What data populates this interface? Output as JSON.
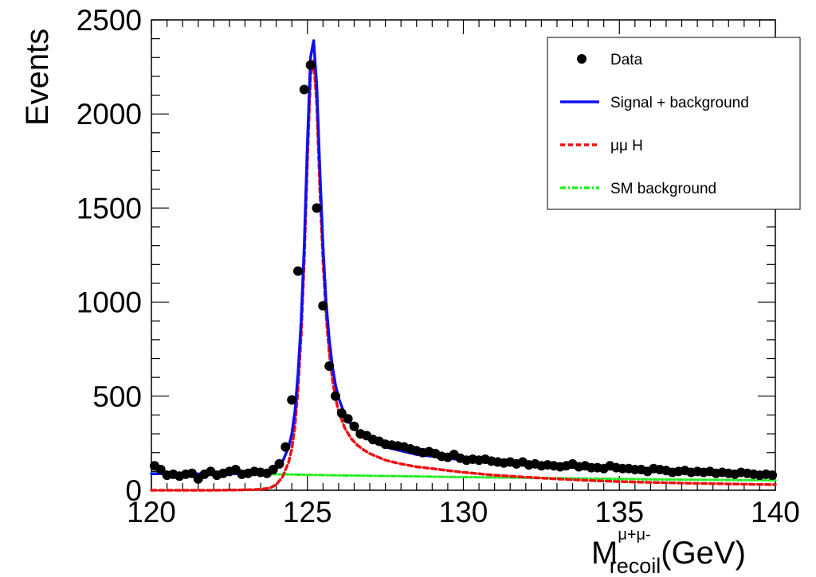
{
  "chart_data": {
    "type": "scatter",
    "ylabel": "Events",
    "xlabel": {
      "main": "M",
      "sup": "μ+μ-",
      "sub": "recoil",
      "unit": "(GeV)"
    },
    "xlim": [
      120,
      140
    ],
    "ylim": [
      0,
      2500
    ],
    "x_ticks": [
      "120",
      "125",
      "130",
      "135",
      "140"
    ],
    "y_ticks": [
      "0",
      "500",
      "1000",
      "1500",
      "2000",
      "2500"
    ],
    "grid": false,
    "legend_position": "top-right",
    "series": [
      {
        "name": "Data",
        "kind": "points",
        "color": "#000000",
        "x": [
          120.1,
          120.3,
          120.5,
          120.7,
          120.9,
          121.1,
          121.3,
          121.5,
          121.7,
          121.9,
          122.1,
          122.3,
          122.5,
          122.7,
          122.9,
          123.1,
          123.3,
          123.5,
          123.7,
          123.9,
          124.1,
          124.3,
          124.5,
          124.7,
          124.9,
          125.1,
          125.3,
          125.5,
          125.7,
          125.9,
          126.1,
          126.3,
          126.5,
          126.7,
          126.9,
          127.1,
          127.3,
          127.5,
          127.7,
          127.9,
          128.1,
          128.3,
          128.5,
          128.7,
          128.9,
          129.1,
          129.3,
          129.5,
          129.7,
          129.9,
          130.1,
          130.3,
          130.5,
          130.7,
          130.9,
          131.1,
          131.3,
          131.5,
          131.7,
          131.9,
          132.1,
          132.3,
          132.5,
          132.7,
          132.9,
          133.1,
          133.3,
          133.5,
          133.7,
          133.9,
          134.1,
          134.3,
          134.5,
          134.7,
          134.9,
          135.1,
          135.3,
          135.5,
          135.7,
          135.9,
          136.1,
          136.3,
          136.5,
          136.7,
          136.9,
          137.1,
          137.3,
          137.5,
          137.7,
          137.9,
          138.1,
          138.3,
          138.5,
          138.7,
          138.9,
          139.1,
          139.3,
          139.5,
          139.7,
          139.9
        ],
        "y": [
          130,
          110,
          80,
          85,
          75,
          85,
          90,
          60,
          85,
          100,
          80,
          90,
          100,
          110,
          85,
          90,
          100,
          95,
          90,
          110,
          140,
          230,
          480,
          1165,
          2130,
          2260,
          1500,
          980,
          660,
          500,
          410,
          380,
          340,
          300,
          290,
          270,
          260,
          245,
          240,
          235,
          230,
          220,
          210,
          200,
          205,
          195,
          180,
          175,
          190,
          170,
          160,
          165,
          160,
          165,
          155,
          150,
          145,
          150,
          140,
          150,
          135,
          140,
          130,
          135,
          130,
          125,
          130,
          140,
          125,
          130,
          120,
          120,
          115,
          130,
          120,
          115,
          115,
          110,
          110,
          100,
          115,
          110,
          105,
          95,
          100,
          105,
          95,
          100,
          95,
          100,
          90,
          95,
          90,
          85,
          95,
          90,
          85,
          80,
          85,
          80
        ]
      },
      {
        "name": "Signal + background",
        "kind": "line",
        "color": "#1010ee",
        "x": [
          120.0,
          120.5,
          121.0,
          121.5,
          122.0,
          122.5,
          123.0,
          123.5,
          123.8,
          124.0,
          124.2,
          124.4,
          124.5,
          124.6,
          124.7,
          124.8,
          124.9,
          125.0,
          125.1,
          125.2,
          125.3,
          125.4,
          125.5,
          125.6,
          125.7,
          125.8,
          125.9,
          126.0,
          126.2,
          126.4,
          126.6,
          126.8,
          127.0,
          127.5,
          128.0,
          128.5,
          129.0,
          129.5,
          130.0,
          131.0,
          132.0,
          133.0,
          134.0,
          135.0,
          136.0,
          137.0,
          138.0,
          139.0,
          140.0
        ],
        "y": [
          88,
          88,
          87,
          87,
          87,
          87,
          88,
          92,
          100,
          115,
          150,
          230,
          300,
          420,
          620,
          900,
          1300,
          1850,
          2300,
          2390,
          2150,
          1700,
          1300,
          1000,
          800,
          660,
          560,
          490,
          400,
          350,
          315,
          290,
          268,
          230,
          210,
          190,
          180,
          170,
          160,
          145,
          135,
          125,
          118,
          110,
          105,
          100,
          95,
          90,
          85
        ]
      },
      {
        "name": "μμ H",
        "kind": "line",
        "color": "#ee1111",
        "x": [
          120.0,
          121.0,
          122.0,
          123.0,
          123.5,
          123.8,
          124.0,
          124.2,
          124.4,
          124.5,
          124.6,
          124.7,
          124.8,
          124.9,
          125.0,
          125.1,
          125.2,
          125.3,
          125.4,
          125.5,
          125.6,
          125.7,
          125.8,
          125.9,
          126.0,
          126.2,
          126.4,
          126.6,
          126.8,
          127.0,
          127.5,
          128.0,
          128.5,
          129.0,
          129.5,
          130.0,
          131.0,
          132.0,
          133.0,
          134.0,
          135.0,
          136.0,
          137.0,
          138.0,
          139.0,
          140.0
        ],
        "y": [
          0,
          0,
          0,
          2,
          5,
          12,
          30,
          70,
          150,
          220,
          340,
          540,
          820,
          1220,
          1750,
          2200,
          2290,
          2050,
          1600,
          1220,
          930,
          730,
          590,
          490,
          420,
          330,
          275,
          240,
          215,
          195,
          160,
          140,
          125,
          115,
          105,
          95,
          80,
          70,
          60,
          52,
          46,
          42,
          38,
          35,
          32,
          30
        ]
      },
      {
        "name": "SM background",
        "kind": "line",
        "color": "#22ee22",
        "x": [
          120,
          122,
          124,
          125,
          126,
          128,
          130,
          132,
          134,
          136,
          138,
          140
        ],
        "y": [
          90,
          88,
          85,
          82,
          79,
          75,
          70,
          66,
          62,
          58,
          55,
          53
        ]
      }
    ]
  }
}
